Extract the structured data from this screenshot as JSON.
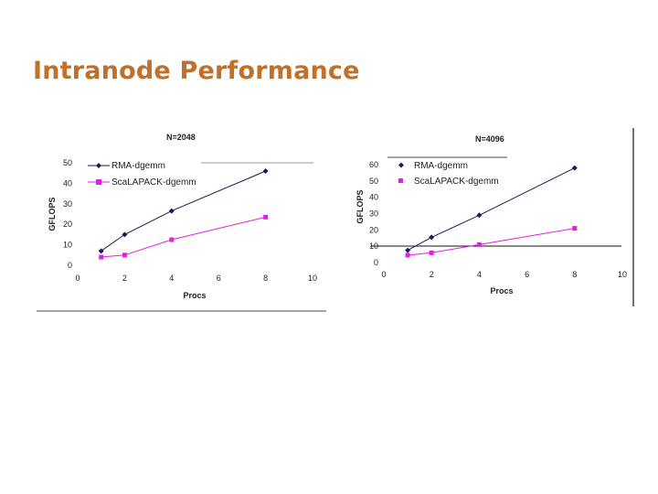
{
  "slide": {
    "title": "Intranode Performance"
  },
  "colors": {
    "title": "#c1702b",
    "rma": "#1a1a5c",
    "scalapack": "#e020e0",
    "axis": "#333333"
  },
  "chart_data": [
    {
      "type": "line",
      "title": "N=2048",
      "xlabel": "Procs",
      "ylabel": "GFLOPS",
      "xlim": [
        0,
        10
      ],
      "ylim": [
        0,
        50
      ],
      "xticks": [
        "0",
        "2",
        "4",
        "6",
        "8",
        "10"
      ],
      "yticks": [
        "0",
        "10",
        "20",
        "30",
        "40",
        "50"
      ],
      "grid": false,
      "legend": "top-left",
      "series": [
        {
          "name": "RMA-dgemm",
          "marker": "diamond",
          "x": [
            1,
            2,
            4,
            8
          ],
          "y": [
            7,
            15,
            26.5,
            46
          ]
        },
        {
          "name": "ScaLAPACK-dgemm",
          "marker": "square",
          "x": [
            1,
            2,
            4,
            8
          ],
          "y": [
            4,
            5,
            12.5,
            23.5
          ]
        }
      ]
    },
    {
      "type": "line",
      "title": "N=4096",
      "xlabel": "Procs",
      "ylabel": "GFLOPS",
      "xlim": [
        0,
        10
      ],
      "ylim": [
        0,
        60
      ],
      "xticks": [
        "0",
        "2",
        "4",
        "6",
        "8",
        "10"
      ],
      "yticks": [
        "0",
        "10",
        "20",
        "30",
        "40",
        "50",
        "60"
      ],
      "grid": false,
      "legend": "top-left",
      "series": [
        {
          "name": "RMA-dgemm",
          "marker": "diamond",
          "x": [
            1,
            2,
            4,
            8
          ],
          "y": [
            7.5,
            15.5,
            29,
            58
          ]
        },
        {
          "name": "ScaLAPACK-dgemm",
          "marker": "square",
          "x": [
            1,
            2,
            4,
            8
          ],
          "y": [
            4.5,
            6,
            11,
            21
          ]
        }
      ]
    }
  ]
}
